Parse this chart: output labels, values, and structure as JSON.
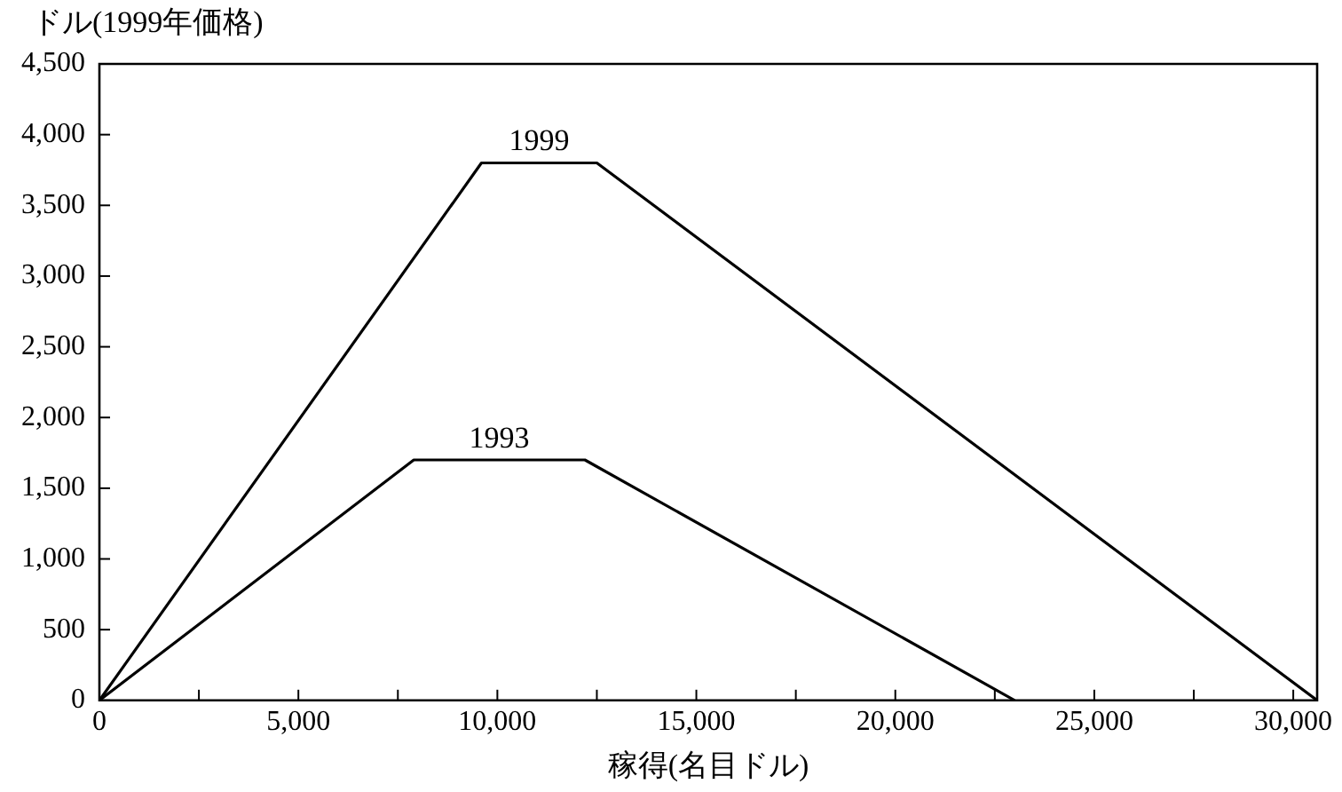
{
  "chart_data": {
    "type": "line",
    "ylabel": "ドル(1999年価格)",
    "xlabel": "稼得(名目ドル)",
    "series": [
      {
        "name": "1999",
        "color": "#000000",
        "x": [
          0,
          9600,
          12500,
          30600
        ],
        "values": [
          0,
          3800,
          3800,
          0
        ]
      },
      {
        "name": "1993",
        "color": "#000000",
        "x": [
          0,
          7900,
          12200,
          23000
        ],
        "values": [
          0,
          1700,
          1700,
          0
        ]
      }
    ],
    "xlim": [
      0,
      30600
    ],
    "ylim": [
      0,
      4500
    ],
    "xticks": [
      0,
      {
        "value": 2500,
        "label": null
      },
      {
        "value": 5000,
        "label": "5,000"
      },
      {
        "value": 7500,
        "label": null
      },
      {
        "value": 10000,
        "label": "10,000"
      },
      {
        "value": 12500,
        "label": null
      },
      {
        "value": 15000,
        "label": "15,000"
      },
      {
        "value": 17500,
        "label": null
      },
      {
        "value": 20000,
        "label": "20,000"
      },
      {
        "value": 22500,
        "label": null
      },
      {
        "value": 25000,
        "label": "25,000"
      },
      {
        "value": 27500,
        "label": null
      },
      {
        "value": 30000,
        "label": "30,000"
      }
    ],
    "yticks": [
      0,
      500,
      {
        "value": 1000,
        "label": "1,000"
      },
      {
        "value": 1500,
        "label": "1,500"
      },
      {
        "value": 2000,
        "label": "2,000"
      },
      {
        "value": 2500,
        "label": "2,500"
      },
      {
        "value": 3000,
        "label": "3,000"
      },
      {
        "value": 3500,
        "label": "3,500"
      },
      {
        "value": 4000,
        "label": "4,000"
      },
      {
        "value": 4500,
        "label": "4,500"
      }
    ],
    "grid": false,
    "legend": false,
    "marker": "none",
    "line_style": "solid"
  }
}
